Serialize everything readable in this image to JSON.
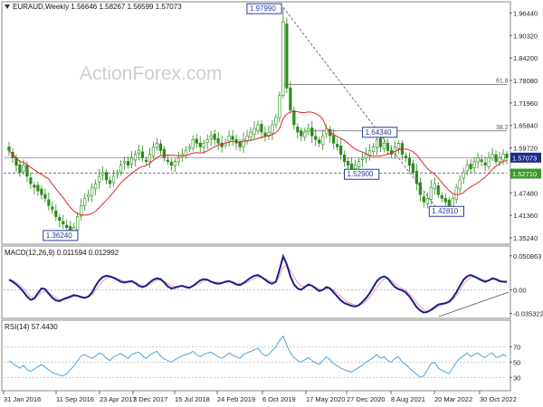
{
  "chart_data": {
    "type": "candlestick",
    "panels": {
      "price": {
        "title": "EURAUD,Weekly  1.56646 1.58267 1.56599 1.57073",
        "ohlc": {
          "open": 1.56646,
          "high": 1.58267,
          "low": 1.56599,
          "close": 1.57073
        },
        "y_ticks": [
          "1.96440",
          "1.90320",
          "1.84200",
          "1.78080",
          "1.71960",
          "1.65840",
          "1.59720",
          "1.53600",
          "1.47480",
          "1.41360",
          "1.35240"
        ],
        "ylim": [
          1.34,
          1.99
        ],
        "current_price": "1.57073",
        "ma_price": "1.52710",
        "levels": {
          "top_label": "1.97990",
          "low_2016": "1.36240",
          "mid_low": "1.52900",
          "resistance": "1.64340",
          "low_2022": "1.42810"
        },
        "fibs": [
          {
            "label": "61.8",
            "value": 1.7697
          },
          {
            "label": "38.2",
            "value": 1.6434
          }
        ],
        "trendline": {
          "from": 1.9799,
          "to": 1.4281
        },
        "series_values": [
          1.59,
          1.57,
          1.55,
          1.53,
          1.55,
          1.52,
          1.5,
          1.49,
          1.48,
          1.47,
          1.46,
          1.44,
          1.43,
          1.41,
          1.4,
          1.39,
          1.38,
          1.37,
          1.38,
          1.41,
          1.44,
          1.46,
          1.47,
          1.49,
          1.5,
          1.52,
          1.53,
          1.51,
          1.5,
          1.52,
          1.53,
          1.55,
          1.56,
          1.55,
          1.57,
          1.58,
          1.59,
          1.57,
          1.56,
          1.58,
          1.6,
          1.61,
          1.59,
          1.57,
          1.56,
          1.55,
          1.56,
          1.57,
          1.58,
          1.59,
          1.6,
          1.62,
          1.61,
          1.6,
          1.61,
          1.62,
          1.63,
          1.62,
          1.61,
          1.6,
          1.61,
          1.63,
          1.62,
          1.61,
          1.6,
          1.62,
          1.63,
          1.64,
          1.65,
          1.66,
          1.64,
          1.63,
          1.64,
          1.66,
          1.68,
          1.74,
          1.94,
          1.76,
          1.7,
          1.66,
          1.64,
          1.63,
          1.64,
          1.65,
          1.63,
          1.62,
          1.61,
          1.63,
          1.65,
          1.63,
          1.61,
          1.6,
          1.58,
          1.56,
          1.55,
          1.54,
          1.55,
          1.56,
          1.57,
          1.58,
          1.59,
          1.6,
          1.62,
          1.6,
          1.61,
          1.59,
          1.58,
          1.6,
          1.61,
          1.58,
          1.57,
          1.55,
          1.53,
          1.5,
          1.47,
          1.45,
          1.46,
          1.49,
          1.5,
          1.47,
          1.46,
          1.45,
          1.44,
          1.46,
          1.49,
          1.51,
          1.53,
          1.55,
          1.54,
          1.56,
          1.57,
          1.56,
          1.55,
          1.57,
          1.58,
          1.56,
          1.57,
          1.58,
          1.57
        ]
      },
      "macd": {
        "label": "MACD(12,26,9) 0.011594 0.012992",
        "y_ticks": [
          "0.050863",
          "0.00",
          "-0.035322"
        ],
        "ylim": [
          -0.04,
          0.06
        ],
        "series": [
          {
            "name": "MACD",
            "values": [
              0.015,
              0.012,
              0.008,
              0.003,
              -0.003,
              -0.01,
              -0.015,
              -0.013,
              -0.005,
              0.002,
              0.001,
              -0.006,
              -0.012,
              -0.016,
              -0.017,
              -0.014,
              -0.012,
              -0.01,
              -0.008,
              -0.009,
              -0.011,
              -0.012,
              -0.01,
              -0.004,
              0.006,
              0.014,
              0.019,
              0.021,
              0.02,
              0.018,
              0.015,
              0.012,
              0.011,
              0.012,
              0.013,
              0.01,
              0.006,
              0.004,
              0.006,
              0.011,
              0.015,
              0.017,
              0.016,
              0.011,
              0.005,
              0.002,
              0.003,
              0.005,
              0.006,
              0.004,
              0.003,
              0.006,
              0.01,
              0.014,
              0.016,
              0.015,
              0.012,
              0.01,
              0.009,
              0.01,
              0.012,
              0.013,
              0.011,
              0.008,
              0.007,
              0.01,
              0.014,
              0.018,
              0.021,
              0.022,
              0.019,
              0.015,
              0.011,
              0.009,
              0.012,
              0.03,
              0.05,
              0.038,
              0.02,
              0.008,
              0.002,
              0.0,
              0.004,
              0.008,
              0.006,
              0.002,
              -0.002,
              0.0,
              0.004,
              0.002,
              -0.004,
              -0.01,
              -0.016,
              -0.02,
              -0.022,
              -0.024,
              -0.025,
              -0.023,
              -0.018,
              -0.012,
              -0.005,
              0.004,
              0.013,
              0.018,
              0.02,
              0.017,
              0.01,
              0.004,
              0.001,
              -0.001,
              -0.004,
              -0.01,
              -0.018,
              -0.026,
              -0.031,
              -0.034,
              -0.033,
              -0.03,
              -0.026,
              -0.022,
              -0.021,
              -0.02,
              -0.018,
              -0.012,
              -0.004,
              0.006,
              0.015,
              0.02,
              0.022,
              0.02,
              0.017,
              0.014,
              0.012,
              0.014,
              0.017,
              0.016,
              0.013,
              0.012,
              0.0116
            ]
          },
          {
            "name": "Signal",
            "values": [
              0.016,
              0.014,
              0.011,
              0.007,
              0.002,
              -0.004,
              -0.01,
              -0.012,
              -0.009,
              -0.004,
              -0.002,
              -0.004,
              -0.008,
              -0.012,
              -0.015,
              -0.015,
              -0.014,
              -0.012,
              -0.01,
              -0.009,
              -0.01,
              -0.011,
              -0.011,
              -0.008,
              -0.001,
              0.007,
              0.013,
              0.017,
              0.019,
              0.019,
              0.017,
              0.015,
              0.013,
              0.012,
              0.012,
              0.011,
              0.009,
              0.007,
              0.006,
              0.008,
              0.011,
              0.014,
              0.015,
              0.013,
              0.009,
              0.006,
              0.005,
              0.005,
              0.005,
              0.005,
              0.004,
              0.005,
              0.007,
              0.01,
              0.013,
              0.014,
              0.013,
              0.012,
              0.011,
              0.011,
              0.011,
              0.012,
              0.012,
              0.01,
              0.009,
              0.009,
              0.011,
              0.014,
              0.017,
              0.019,
              0.019,
              0.017,
              0.014,
              0.012,
              0.012,
              0.02,
              0.034,
              0.036,
              0.029,
              0.019,
              0.011,
              0.006,
              0.005,
              0.006,
              0.006,
              0.004,
              0.001,
              0.0,
              0.002,
              0.002,
              -0.001,
              -0.005,
              -0.01,
              -0.015,
              -0.019,
              -0.021,
              -0.023,
              -0.023,
              -0.021,
              -0.017,
              -0.011,
              -0.004,
              0.004,
              0.011,
              0.016,
              0.017,
              0.014,
              0.009,
              0.005,
              0.002,
              -0.001,
              -0.006,
              -0.012,
              -0.019,
              -0.025,
              -0.03,
              -0.032,
              -0.031,
              -0.029,
              -0.025,
              -0.023,
              -0.021,
              -0.019,
              -0.015,
              -0.009,
              -0.001,
              0.008,
              0.014,
              0.018,
              0.019,
              0.018,
              0.016,
              0.014,
              0.014,
              0.015,
              0.015,
              0.014,
              0.013,
              0.013
            ]
          }
        ]
      },
      "rsi": {
        "label": "RSI(14) 57.4430",
        "y_ticks": [
          "70",
          "50",
          "30"
        ],
        "ylim": [
          15,
          100
        ],
        "series": [
          {
            "name": "RSI",
            "values": [
              52,
              48,
              45,
              42,
              46,
              40,
              38,
              41,
              44,
              47,
              43,
              40,
              36,
              35,
              33,
              32,
              35,
              40,
              45,
              52,
              58,
              60,
              57,
              55,
              58,
              62,
              60,
              55,
              52,
              57,
              59,
              61,
              58,
              55,
              60,
              62,
              63,
              58,
              55,
              59,
              62,
              64,
              58,
              54,
              52,
              50,
              53,
              56,
              58,
              60,
              61,
              64,
              60,
              57,
              60,
              62,
              63,
              60,
              57,
              55,
              58,
              62,
              59,
              57,
              55,
              60,
              62,
              64,
              66,
              68,
              62,
              58,
              60,
              65,
              70,
              78,
              84,
              72,
              62,
              56,
              52,
              50,
              53,
              56,
              52,
              49,
              47,
              52,
              57,
              53,
              48,
              45,
              42,
              40,
              38,
              37,
              40,
              43,
              46,
              50,
              53,
              56,
              60,
              55,
              57,
              52,
              50,
              55,
              57,
              50,
              47,
              42,
              38,
              34,
              30,
              32,
              40,
              48,
              50,
              42,
              39,
              37,
              35,
              42,
              50,
              55,
              58,
              62,
              57,
              60,
              62,
              58,
              56,
              60,
              62,
              56,
              57,
              60,
              57.44
            ]
          }
        ]
      }
    },
    "x_labels": [
      "31 Jan 2016",
      "11 Sep 2016",
      "23 Apr 2017",
      "3 Dec 2017",
      "15 Jul 2018",
      "24 Feb 2019",
      "6 Oct 2019",
      "17 May 2020",
      "27 Dec 2020",
      "8 Aug 2021",
      "20 Mar 2022",
      "30 Oct 2022"
    ],
    "watermark": "ActionForex.com",
    "colors": {
      "candle": "#2c8a1a",
      "ma": "#e6242b",
      "price_tag": "#1c2a8a",
      "ma_tag": "#3a9a2a",
      "macd_line": "#1c1e8c",
      "signal_line": "#f0a0a0",
      "rsi_line": "#4aa3df"
    }
  }
}
